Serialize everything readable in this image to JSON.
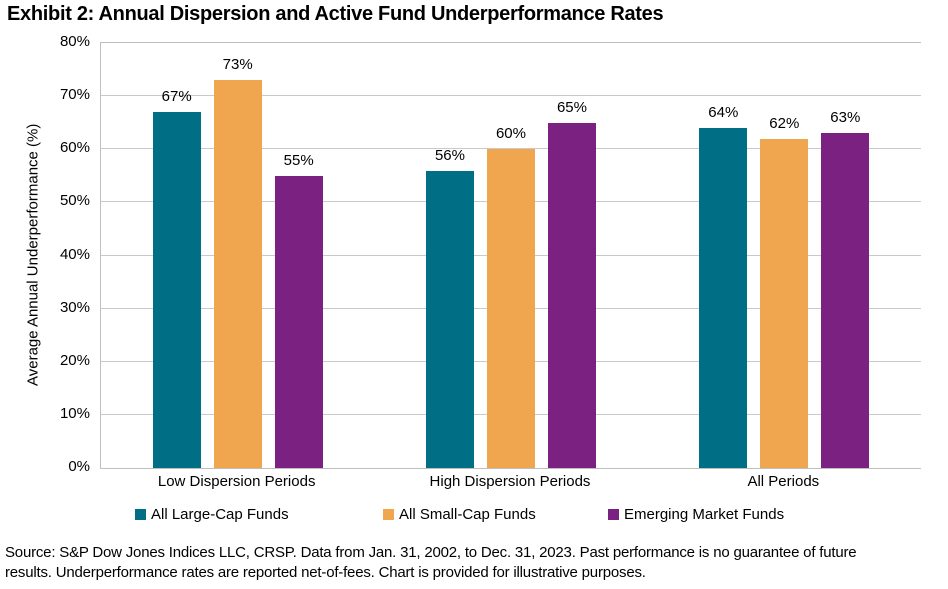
{
  "chart_data": {
    "type": "bar",
    "title": "Exhibit 2: Annual Dispersion and Active Fund Underperformance Rates",
    "categories": [
      "Low Dispersion Periods",
      "High Dispersion Periods",
      "All Periods"
    ],
    "series": [
      {
        "name": "All Large-Cap Funds",
        "color": "#006E85",
        "values": [
          67,
          56,
          64
        ]
      },
      {
        "name": "All Small-Cap Funds",
        "color": "#F0A64F",
        "values": [
          73,
          60,
          62
        ]
      },
      {
        "name": "Emerging Market Funds",
        "color": "#7A2182",
        "values": [
          55,
          65,
          63
        ]
      }
    ],
    "value_suffix": "%",
    "xlabel": "",
    "ylabel": "Average Annual Underperformance (%)",
    "ylim": [
      0,
      80
    ],
    "ytick_step": 10,
    "ytick_suffix": "%",
    "grid": true,
    "legend_position": "bottom"
  },
  "footer": {
    "source_lines": [
      "Source: S&P Dow Jones Indices LLC, CRSP. Data from Jan. 31, 2002, to Dec. 31, 2023. Past performance is no guarantee of future",
      "results. Underperformance rates are reported net-of-fees. Chart is provided for illustrative purposes."
    ]
  },
  "style_colors": {
    "gridline": "#C9C9C9",
    "axis": "#BFBFBF",
    "text": "#000000"
  }
}
